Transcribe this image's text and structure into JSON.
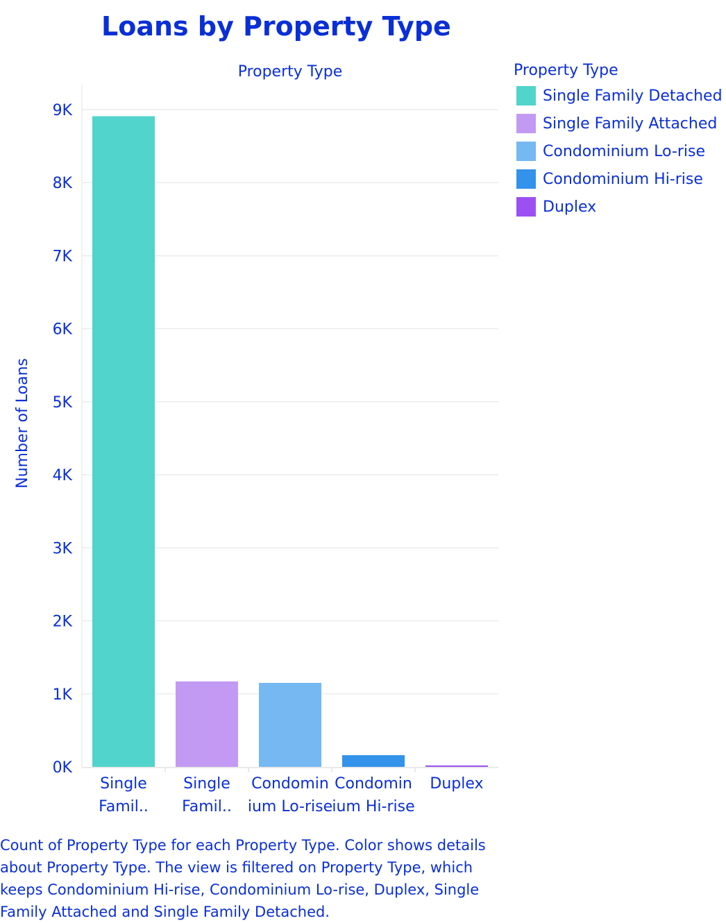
{
  "chart_data": {
    "type": "bar",
    "title": "Loans by Property Type",
    "top_axis_label": "Property Type",
    "ylabel": "Number of Loans",
    "ylim": [
      0,
      9000
    ],
    "y_ticks": [
      "0K",
      "1K",
      "2K",
      "3K",
      "4K",
      "5K",
      "6K",
      "7K",
      "8K",
      "9K"
    ],
    "y_tick_values": [
      0,
      1000,
      2000,
      3000,
      4000,
      5000,
      6000,
      7000,
      8000,
      9000
    ],
    "categories": [
      "Single Family Detached",
      "Single Family Attached",
      "Condominium Lo-rise",
      "Condominium Hi-rise",
      "Duplex"
    ],
    "category_tick_labels": [
      [
        "Single",
        "Famil.."
      ],
      [
        "Single",
        "Famil.."
      ],
      [
        "Condomin",
        "ium Lo-rise"
      ],
      [
        "Condomin",
        "ium Hi-rise"
      ],
      [
        "Duplex"
      ]
    ],
    "values": [
      8910,
      1170,
      1150,
      160,
      10
    ],
    "colors": [
      "#50d4cc",
      "#c39af3",
      "#76b8f2",
      "#3392ea",
      "#9d50f2"
    ],
    "grid": true,
    "legend_position": "right",
    "legend": {
      "title": "Property Type",
      "items": [
        "Single Family Detached",
        "Single Family Attached",
        "Condominium Lo-rise",
        "Condominium Hi-rise",
        "Duplex"
      ]
    },
    "caption": "Count of Property Type for each Property Type.  Color shows details about Property Type. The view is filtered on Property Type, which keeps Condominium Hi-rise, Condominium Lo-rise, Duplex, Single Family Attached and Single Family Detached."
  }
}
